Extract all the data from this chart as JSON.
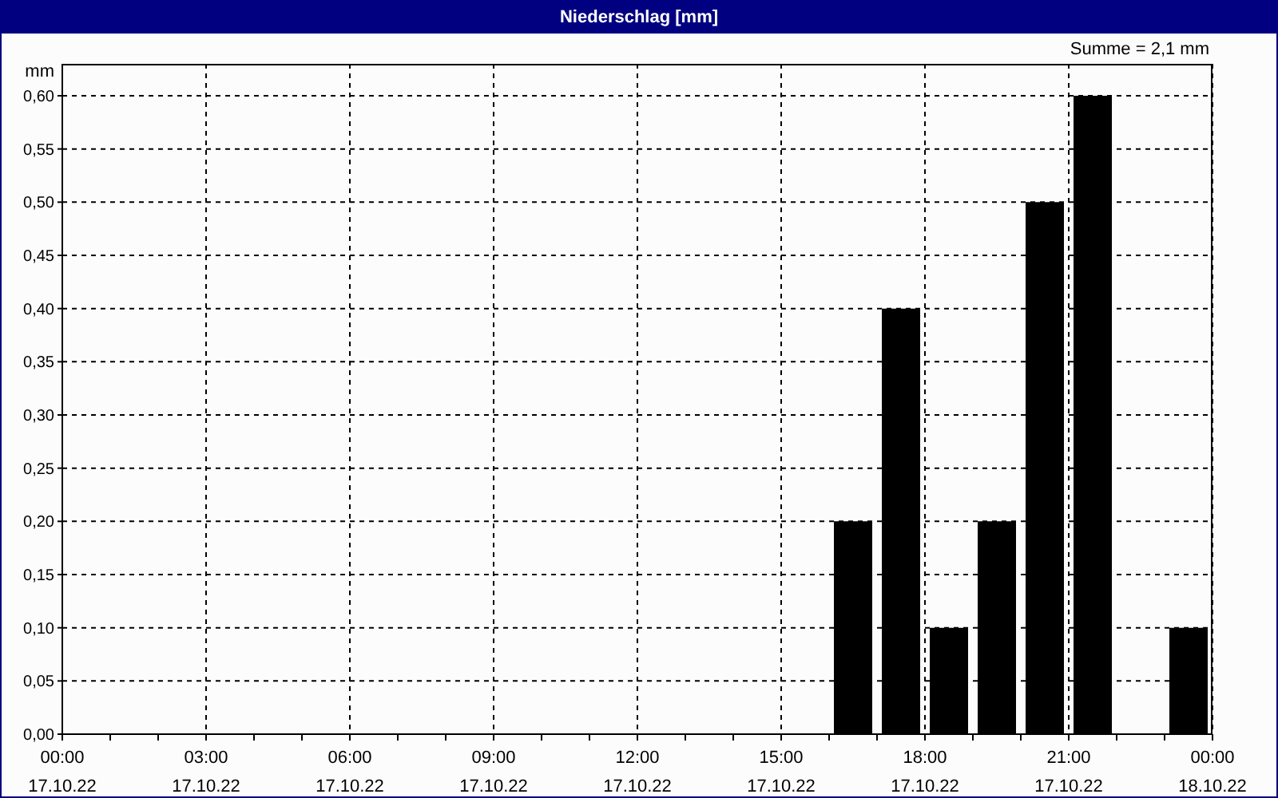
{
  "chart_data": {
    "type": "bar",
    "title": "Niederschlag [mm]",
    "ylabel": "mm",
    "annotations": [
      "Summe = 2,1 mm"
    ],
    "x": [
      "--10-17T16:30",
      "--10-17T17:30",
      "--10-17T18:30",
      "--10-17T19:30",
      "--10-17T20:30",
      "--10-17T21:30",
      "--10-17T23:30"
    ],
    "values": [
      0.2,
      0.4,
      0.1,
      0.2,
      0.5,
      0.6,
      0.1
    ],
    "color": "#000000",
    "xlim": [
      "--10-17T00:00",
      "--10-18T00:00"
    ],
    "xticks": [
      {
        "value": "--10-17T00:00",
        "label": "00:00\n17.10.22"
      },
      {
        "value": "--10-17T01:00",
        "label": null
      },
      {
        "value": "--10-17T02:00",
        "label": null
      },
      {
        "value": "--10-17T03:00",
        "label": "03:00\n17.10.22"
      },
      {
        "value": "--10-17T04:00",
        "label": null
      },
      {
        "value": "--10-17T05:00",
        "label": null
      },
      {
        "value": "--10-17T06:00",
        "label": "06:00\n17.10.22"
      },
      {
        "value": "--10-17T07:00",
        "label": null
      },
      {
        "value": "--10-17T08:00",
        "label": null
      },
      {
        "value": "--10-17T09:00",
        "label": "09:00\n17.10.22"
      },
      {
        "value": "--10-17T10:00",
        "label": null
      },
      {
        "value": "--10-17T11:00",
        "label": null
      },
      {
        "value": "--10-17T12:00",
        "label": "12:00\n17.10.22"
      },
      {
        "value": "--10-17T13:00",
        "label": null
      },
      {
        "value": "--10-17T14:00",
        "label": null
      },
      {
        "value": "--10-17T15:00",
        "label": "15:00\n17.10.22"
      },
      {
        "value": "--10-17T16:00",
        "label": null
      },
      {
        "value": "--10-17T17:00",
        "label": null
      },
      {
        "value": "--10-17T18:00",
        "label": "18:00\n17.10.22"
      },
      {
        "value": "--10-17T19:00",
        "label": null
      },
      {
        "value": "--10-17T20:00",
        "label": null
      },
      {
        "value": "--10-17T21:00",
        "label": "21:00\n17.10.22"
      },
      {
        "value": "--10-17T22:00",
        "label": null
      },
      {
        "value": "--10-17T23:00",
        "label": null
      },
      {
        "value": "--10-18T00:00",
        "label": "00:00\n18.10.22"
      }
    ],
    "ylim": [
      0,
      0.63
    ],
    "yticks": [
      {
        "value": 0,
        "label": "0,00"
      },
      {
        "value": 0.05,
        "label": "0,05"
      },
      {
        "value": 0.1,
        "label": "0,10"
      },
      {
        "value": 0.15,
        "label": "0,15"
      },
      {
        "value": 0.2,
        "label": "0,20"
      },
      {
        "value": 0.25,
        "label": "0,25"
      },
      {
        "value": 0.3,
        "label": "0,30"
      },
      {
        "value": 0.35,
        "label": "0,35"
      },
      {
        "value": 0.4,
        "label": "0,40"
      },
      {
        "value": 0.45,
        "label": "0,45"
      },
      {
        "value": 0.5,
        "label": "0,50"
      },
      {
        "value": 0.55,
        "label": "0,55"
      },
      {
        "value": 0.6,
        "label": "0,60"
      }
    ],
    "grid": true
  }
}
